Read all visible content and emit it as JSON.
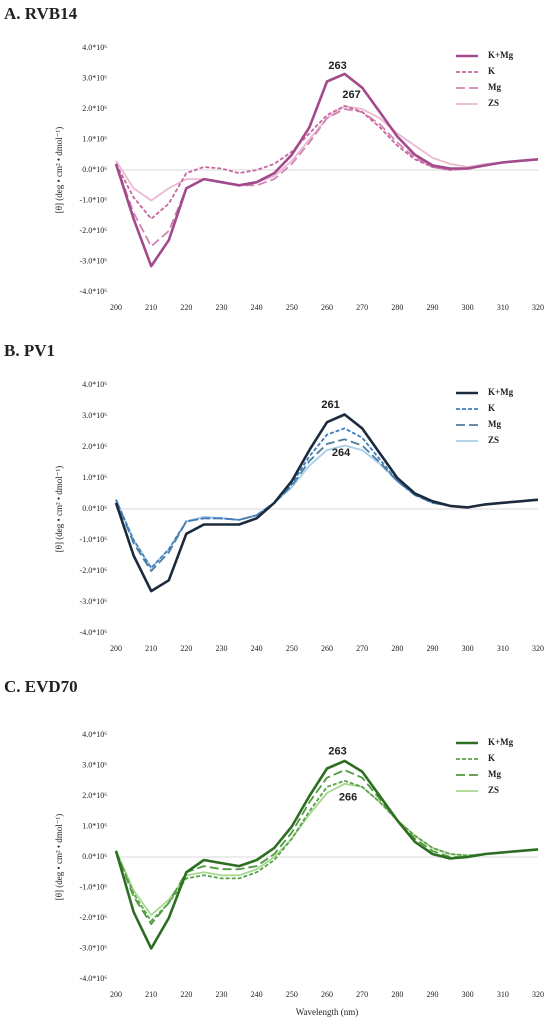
{
  "chart_data": [
    {
      "type": "line",
      "title": "A. RVB14",
      "ylabel": "[θ] (deg • cm² • dmol⁻¹)",
      "x": [
        200,
        205,
        210,
        215,
        220,
        225,
        230,
        235,
        240,
        245,
        250,
        255,
        260,
        265,
        270,
        275,
        280,
        285,
        290,
        295,
        300,
        305,
        310,
        315,
        320
      ],
      "xlim": [
        200,
        320
      ],
      "xticks": [
        200,
        210,
        220,
        230,
        240,
        250,
        260,
        270,
        280,
        290,
        300,
        310,
        320
      ],
      "ylim": [
        -4000000,
        4000000
      ],
      "yticks": [
        {
          "value": -4000000,
          "label": "-4.0*10⁶"
        },
        {
          "value": -3000000,
          "label": "-3.0*10⁶"
        },
        {
          "value": -2000000,
          "label": "-2.0*10⁶"
        },
        {
          "value": -1000000,
          "label": "-1.0*10⁶"
        },
        {
          "value": 0,
          "label": "0.0*10⁶"
        },
        {
          "value": 1000000,
          "label": "1.0*10⁶"
        },
        {
          "value": 2000000,
          "label": "2.0*10⁶"
        },
        {
          "value": 3000000,
          "label": "3.0*10⁶"
        },
        {
          "value": 4000000,
          "label": "4.0*10⁶"
        }
      ],
      "legend": "upper right",
      "series": [
        {
          "name": "K+Mg",
          "color": "#a24a8c",
          "dash": "solid",
          "values": [
            200000,
            -1600000,
            -3150000,
            -2300000,
            -600000,
            -300000,
            -400000,
            -500000,
            -400000,
            -100000,
            500000,
            1400000,
            2900000,
            3150000,
            2700000,
            1900000,
            1100000,
            500000,
            150000,
            50000,
            50000,
            150000,
            250000,
            300000,
            350000
          ]
        },
        {
          "name": "K",
          "color": "#c8679f",
          "dash": "dashed",
          "values": [
            200000,
            -900000,
            -1600000,
            -1100000,
            -100000,
            100000,
            50000,
            -100000,
            0,
            200000,
            600000,
            1200000,
            1800000,
            2100000,
            1900000,
            1400000,
            800000,
            350000,
            100000,
            0,
            50000,
            150000,
            250000,
            300000,
            350000
          ]
        },
        {
          "name": "Mg",
          "color": "#cf84b4",
          "dash": "longdash",
          "values": [
            200000,
            -1400000,
            -2500000,
            -2000000,
            -600000,
            -300000,
            -400000,
            -500000,
            -500000,
            -300000,
            200000,
            900000,
            1700000,
            2000000,
            1900000,
            1500000,
            900000,
            400000,
            100000,
            0,
            50000,
            150000,
            250000,
            300000,
            350000
          ]
        },
        {
          "name": "ZS",
          "color": "#eab9d2",
          "dash": "solid",
          "values": [
            300000,
            -600000,
            -1000000,
            -600000,
            -300000,
            -300000,
            -400000,
            -500000,
            -400000,
            -200000,
            300000,
            1000000,
            1700000,
            2100000,
            2000000,
            1700000,
            1200000,
            800000,
            400000,
            200000,
            100000,
            200000,
            250000,
            300000,
            350000
          ]
        }
      ],
      "annotations": [
        {
          "x": 263,
          "y": 3400000,
          "color": "#a24a8c"
        },
        {
          "x": 267,
          "y": 2450000,
          "color": "#eab9d2"
        }
      ]
    },
    {
      "type": "line",
      "title": "B. PV1",
      "ylabel": "[θ] (deg • cm² • dmol⁻¹)",
      "x": [
        200,
        205,
        210,
        215,
        220,
        225,
        230,
        235,
        240,
        245,
        250,
        255,
        260,
        265,
        270,
        275,
        280,
        285,
        290,
        295,
        300,
        305,
        310,
        315,
        320
      ],
      "xlim": [
        200,
        320
      ],
      "xticks": [
        200,
        210,
        220,
        230,
        240,
        250,
        260,
        270,
        280,
        290,
        300,
        310,
        320
      ],
      "ylim": [
        -4000000,
        4000000
      ],
      "yticks": [
        {
          "value": -4000000,
          "label": "-4.0*10⁶"
        },
        {
          "value": -3000000,
          "label": "-3.0*10⁶"
        },
        {
          "value": -2000000,
          "label": "-2.0*10⁶"
        },
        {
          "value": -1000000,
          "label": "-1.0*10⁶"
        },
        {
          "value": 0,
          "label": "0.0*10⁶"
        },
        {
          "value": 1000000,
          "label": "1.0*10⁶"
        },
        {
          "value": 2000000,
          "label": "2.0*10⁶"
        },
        {
          "value": 3000000,
          "label": "3.0*10⁶"
        },
        {
          "value": 4000000,
          "label": "4.0*10⁶"
        }
      ],
      "legend": "upper right",
      "series": [
        {
          "name": "K+Mg",
          "color": "#1c2b3c",
          "dash": "solid",
          "values": [
            200000,
            -1500000,
            -2650000,
            -2300000,
            -800000,
            -500000,
            -500000,
            -500000,
            -300000,
            200000,
            900000,
            1900000,
            2800000,
            3050000,
            2600000,
            1800000,
            1000000,
            500000,
            250000,
            100000,
            50000,
            150000,
            200000,
            250000,
            300000
          ]
        },
        {
          "name": "K",
          "color": "#3f7fc0",
          "dash": "dashed",
          "values": [
            300000,
            -1000000,
            -1900000,
            -1300000,
            -400000,
            -300000,
            -300000,
            -350000,
            -200000,
            200000,
            800000,
            1700000,
            2400000,
            2600000,
            2300000,
            1600000,
            900000,
            450000,
            200000,
            100000,
            50000,
            150000,
            200000,
            250000,
            300000
          ]
        },
        {
          "name": "Mg",
          "color": "#4d7d9e",
          "dash": "longdash",
          "values": [
            300000,
            -1100000,
            -2000000,
            -1400000,
            -400000,
            -300000,
            -300000,
            -350000,
            -200000,
            200000,
            750000,
            1550000,
            2100000,
            2250000,
            2050000,
            1500000,
            900000,
            450000,
            200000,
            100000,
            50000,
            150000,
            200000,
            250000,
            300000
          ]
        },
        {
          "name": "ZS",
          "color": "#a8cfea",
          "dash": "solid",
          "values": [
            300000,
            -1000000,
            -1900000,
            -1300000,
            -400000,
            -250000,
            -300000,
            -350000,
            -200000,
            200000,
            700000,
            1400000,
            1900000,
            2050000,
            1900000,
            1450000,
            900000,
            450000,
            200000,
            100000,
            50000,
            150000,
            200000,
            250000,
            300000
          ]
        }
      ],
      "annotations": [
        {
          "x": 261,
          "y": 3350000,
          "color": "#2b4a6b"
        },
        {
          "x": 264,
          "y": 1800000,
          "color": "#a8cfea"
        }
      ]
    },
    {
      "type": "line",
      "title": "C. EVD70",
      "ylabel": "[θ] (deg • cm² • dmol⁻¹)",
      "xlabel": "Wavelength (nm)",
      "x": [
        200,
        205,
        210,
        215,
        220,
        225,
        230,
        235,
        240,
        245,
        250,
        255,
        260,
        265,
        270,
        275,
        280,
        285,
        290,
        295,
        300,
        305,
        310,
        315,
        320
      ],
      "xlim": [
        200,
        320
      ],
      "xticks": [
        200,
        210,
        220,
        230,
        240,
        250,
        260,
        270,
        280,
        290,
        300,
        310,
        320
      ],
      "ylim": [
        -4000000,
        4000000
      ],
      "yticks": [
        {
          "value": -4000000,
          "label": "-4.0*10⁶"
        },
        {
          "value": -3000000,
          "label": "-3.0*10⁶"
        },
        {
          "value": -2000000,
          "label": "-2.0*10⁶"
        },
        {
          "value": -1000000,
          "label": "-1.0*10⁶"
        },
        {
          "value": 0,
          "label": "0.0*10⁶"
        },
        {
          "value": 1000000,
          "label": "1.0*10⁶"
        },
        {
          "value": 2000000,
          "label": "2.0*10⁶"
        },
        {
          "value": 3000000,
          "label": "3.0*10⁶"
        },
        {
          "value": 4000000,
          "label": "4.0*10⁶"
        }
      ],
      "legend": "upper right",
      "series": [
        {
          "name": "K+Mg",
          "color": "#2d6e23",
          "dash": "solid",
          "values": [
            200000,
            -1800000,
            -3000000,
            -2000000,
            -500000,
            -100000,
            -200000,
            -300000,
            -100000,
            300000,
            1000000,
            2000000,
            2900000,
            3150000,
            2800000,
            2000000,
            1200000,
            500000,
            100000,
            -50000,
            0,
            100000,
            150000,
            200000,
            250000
          ]
        },
        {
          "name": "K",
          "color": "#5aa34a",
          "dash": "dashed",
          "values": [
            200000,
            -1200000,
            -2100000,
            -1500000,
            -700000,
            -600000,
            -700000,
            -700000,
            -500000,
            -100000,
            600000,
            1500000,
            2300000,
            2500000,
            2300000,
            1800000,
            1200000,
            700000,
            300000,
            100000,
            50000,
            100000,
            150000,
            200000,
            250000
          ]
        },
        {
          "name": "Mg",
          "color": "#4f9a3f",
          "dash": "longdash",
          "values": [
            200000,
            -1300000,
            -2200000,
            -1500000,
            -500000,
            -300000,
            -400000,
            -400000,
            -300000,
            100000,
            800000,
            1800000,
            2600000,
            2850000,
            2600000,
            1900000,
            1200000,
            600000,
            200000,
            0,
            0,
            100000,
            150000,
            200000,
            250000
          ]
        },
        {
          "name": "ZS",
          "color": "#a6d98f",
          "dash": "solid",
          "values": [
            200000,
            -1100000,
            -1900000,
            -1400000,
            -600000,
            -500000,
            -600000,
            -600000,
            -400000,
            0,
            600000,
            1400000,
            2100000,
            2400000,
            2300000,
            1800000,
            1200000,
            700000,
            300000,
            100000,
            50000,
            100000,
            150000,
            200000,
            250000
          ]
        }
      ],
      "annotations": [
        {
          "x": 263,
          "y": 3450000,
          "color": "#2d6e23"
        },
        {
          "x": 266,
          "y": 1950000,
          "color": "#a6d98f"
        }
      ]
    }
  ]
}
